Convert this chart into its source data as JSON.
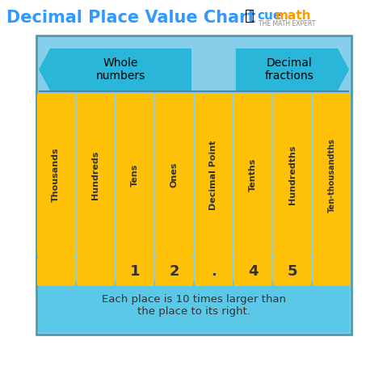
{
  "title": "Decimal Place Value Chart",
  "title_color": "#3399FF",
  "bg_color": "#ffffff",
  "chart_bg": "#87CEEB",
  "chart_border": "#5599AA",
  "bar_color": "#FFC107",
  "columns": [
    "Thousands",
    "Hundreds",
    "Tens",
    "Ones",
    "Decimal Point",
    "Tenths",
    "Hundredths",
    "Ten-thousandths"
  ],
  "values": [
    "",
    "",
    "1",
    "2",
    ".",
    "4",
    "5",
    ""
  ],
  "whole_label": "Whole\nnumbers",
  "decimal_label": "Decimal\nfractions",
  "footer": "Each place is 10 times larger than\nthe place to its right.",
  "arrow_color": "#29B6D8",
  "dark_text": "#333333",
  "cuemath_orange": "#FF9900",
  "cuemath_blue": "#3399FF",
  "footer_bg": "#5BC8E8"
}
